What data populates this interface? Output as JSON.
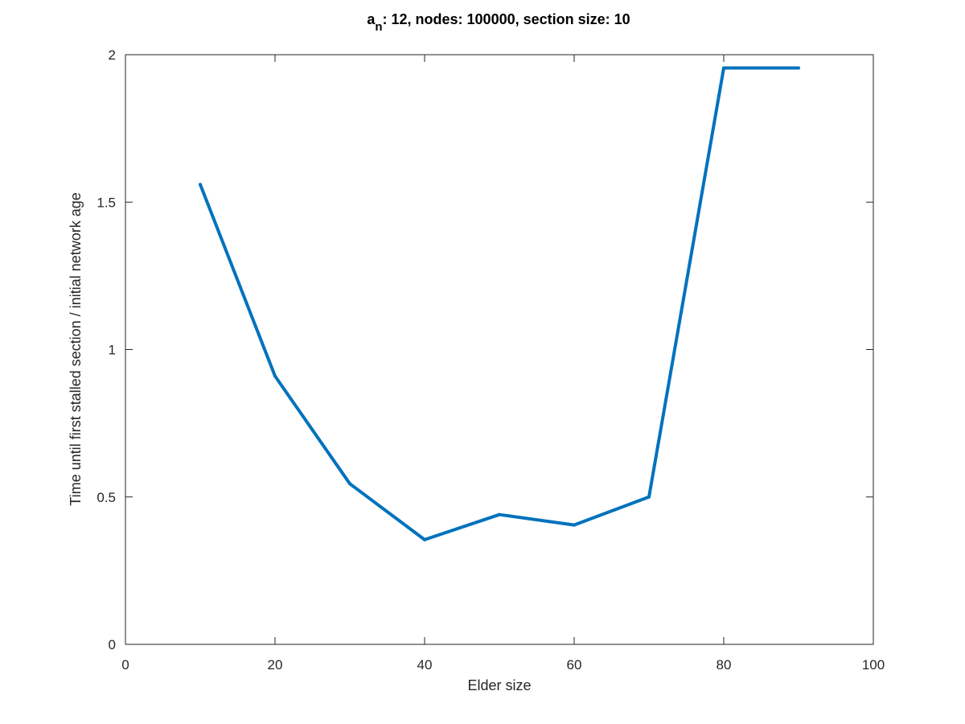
{
  "chart_data": {
    "type": "line",
    "title": {
      "prefix": "a",
      "subscript": "n",
      "rest": ": 12, nodes: 100000, section size: 10"
    },
    "xlabel": "Elder size",
    "ylabel": "Time until first stalled section / initial network age",
    "xlim": [
      0,
      100
    ],
    "ylim": [
      0,
      2
    ],
    "xticks": [
      0,
      20,
      40,
      60,
      80,
      100
    ],
    "yticks": [
      0,
      0.5,
      1,
      1.5,
      2
    ],
    "xtick_labels": [
      "0",
      "20",
      "40",
      "60",
      "80",
      "100"
    ],
    "ytick_labels": [
      "0",
      "0.5",
      "1",
      "1.5",
      "2"
    ],
    "grid": false,
    "series": [
      {
        "color": "#0072bd",
        "x": [
          10,
          20,
          30,
          40,
          50,
          60,
          70,
          80,
          90
        ],
        "y": [
          1.56,
          0.91,
          0.545,
          0.355,
          0.44,
          0.405,
          0.5,
          1.955,
          1.955
        ]
      }
    ]
  }
}
